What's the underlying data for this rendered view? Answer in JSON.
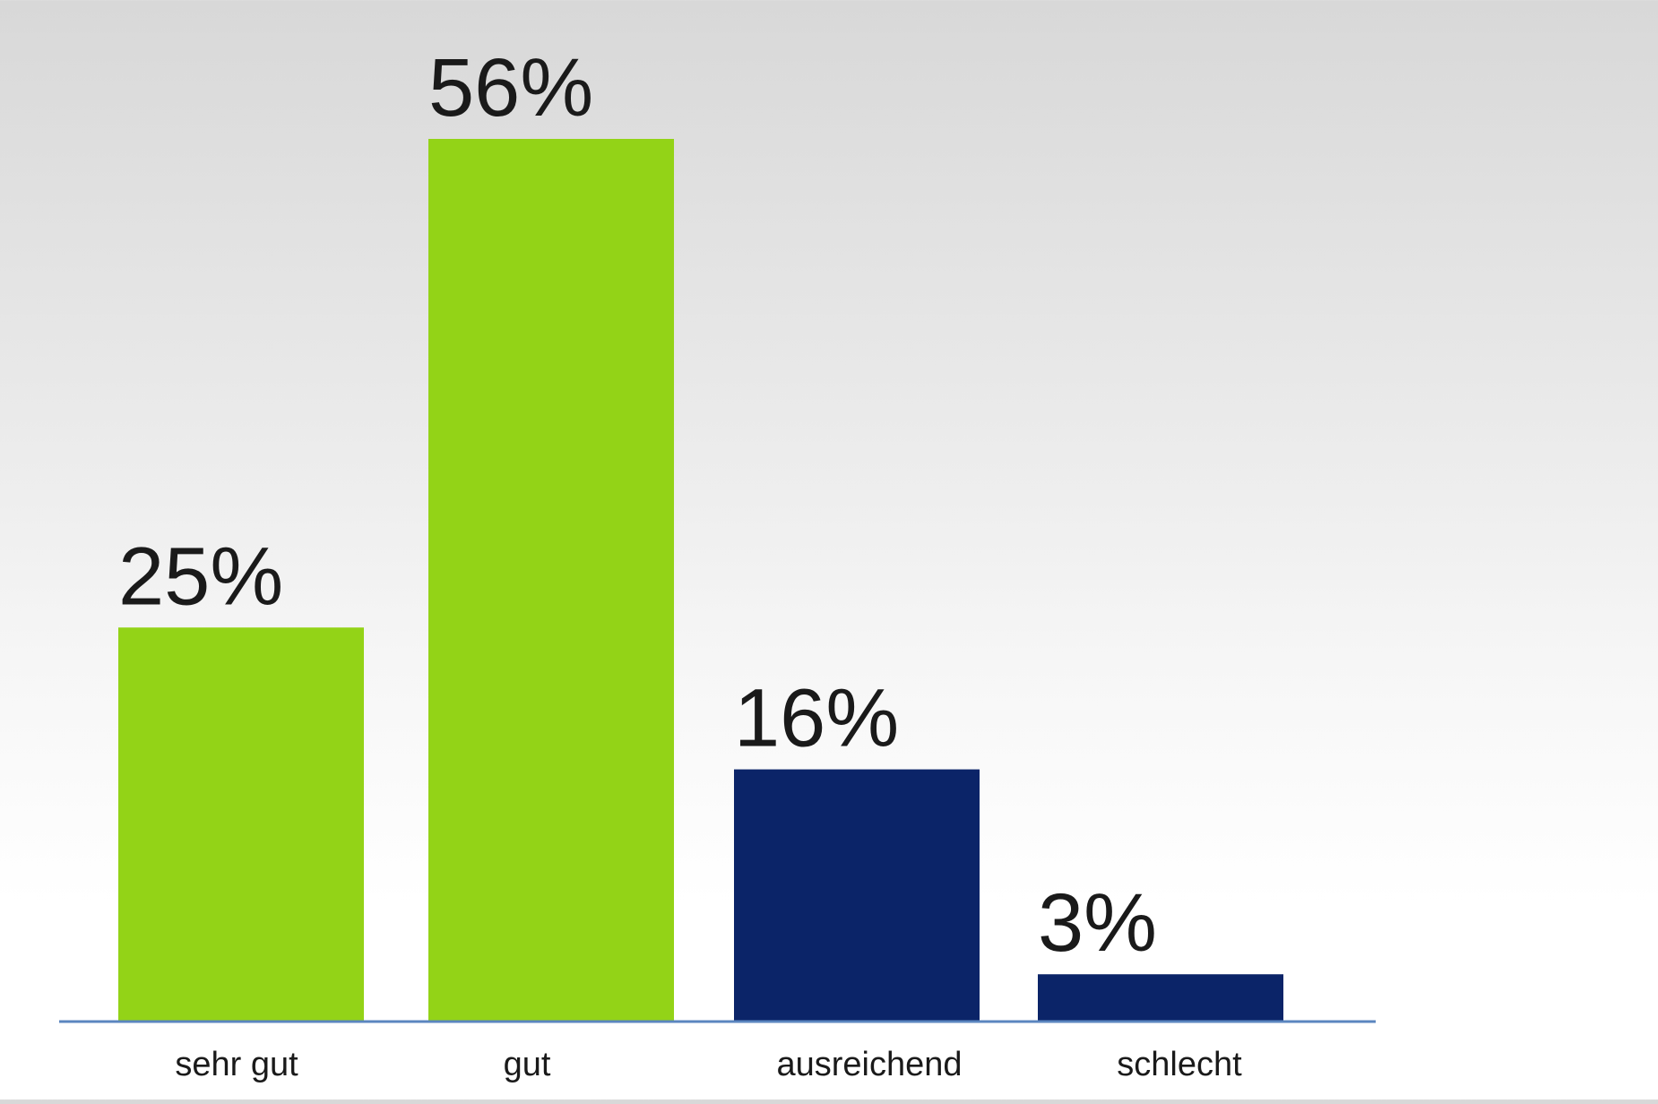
{
  "chart_data": {
    "type": "bar",
    "categories": [
      "sehr gut",
      "gut",
      "ausreichend",
      "schlecht"
    ],
    "values": [
      25,
      56,
      16,
      3
    ],
    "value_labels": [
      "25%",
      "56%",
      "16%",
      "3%"
    ],
    "colors": [
      "#93d317",
      "#93d317",
      "#0b2468",
      "#0b2468"
    ],
    "axis_color": "#5b86bf",
    "ylim": [
      0,
      56
    ],
    "grid": false
  }
}
